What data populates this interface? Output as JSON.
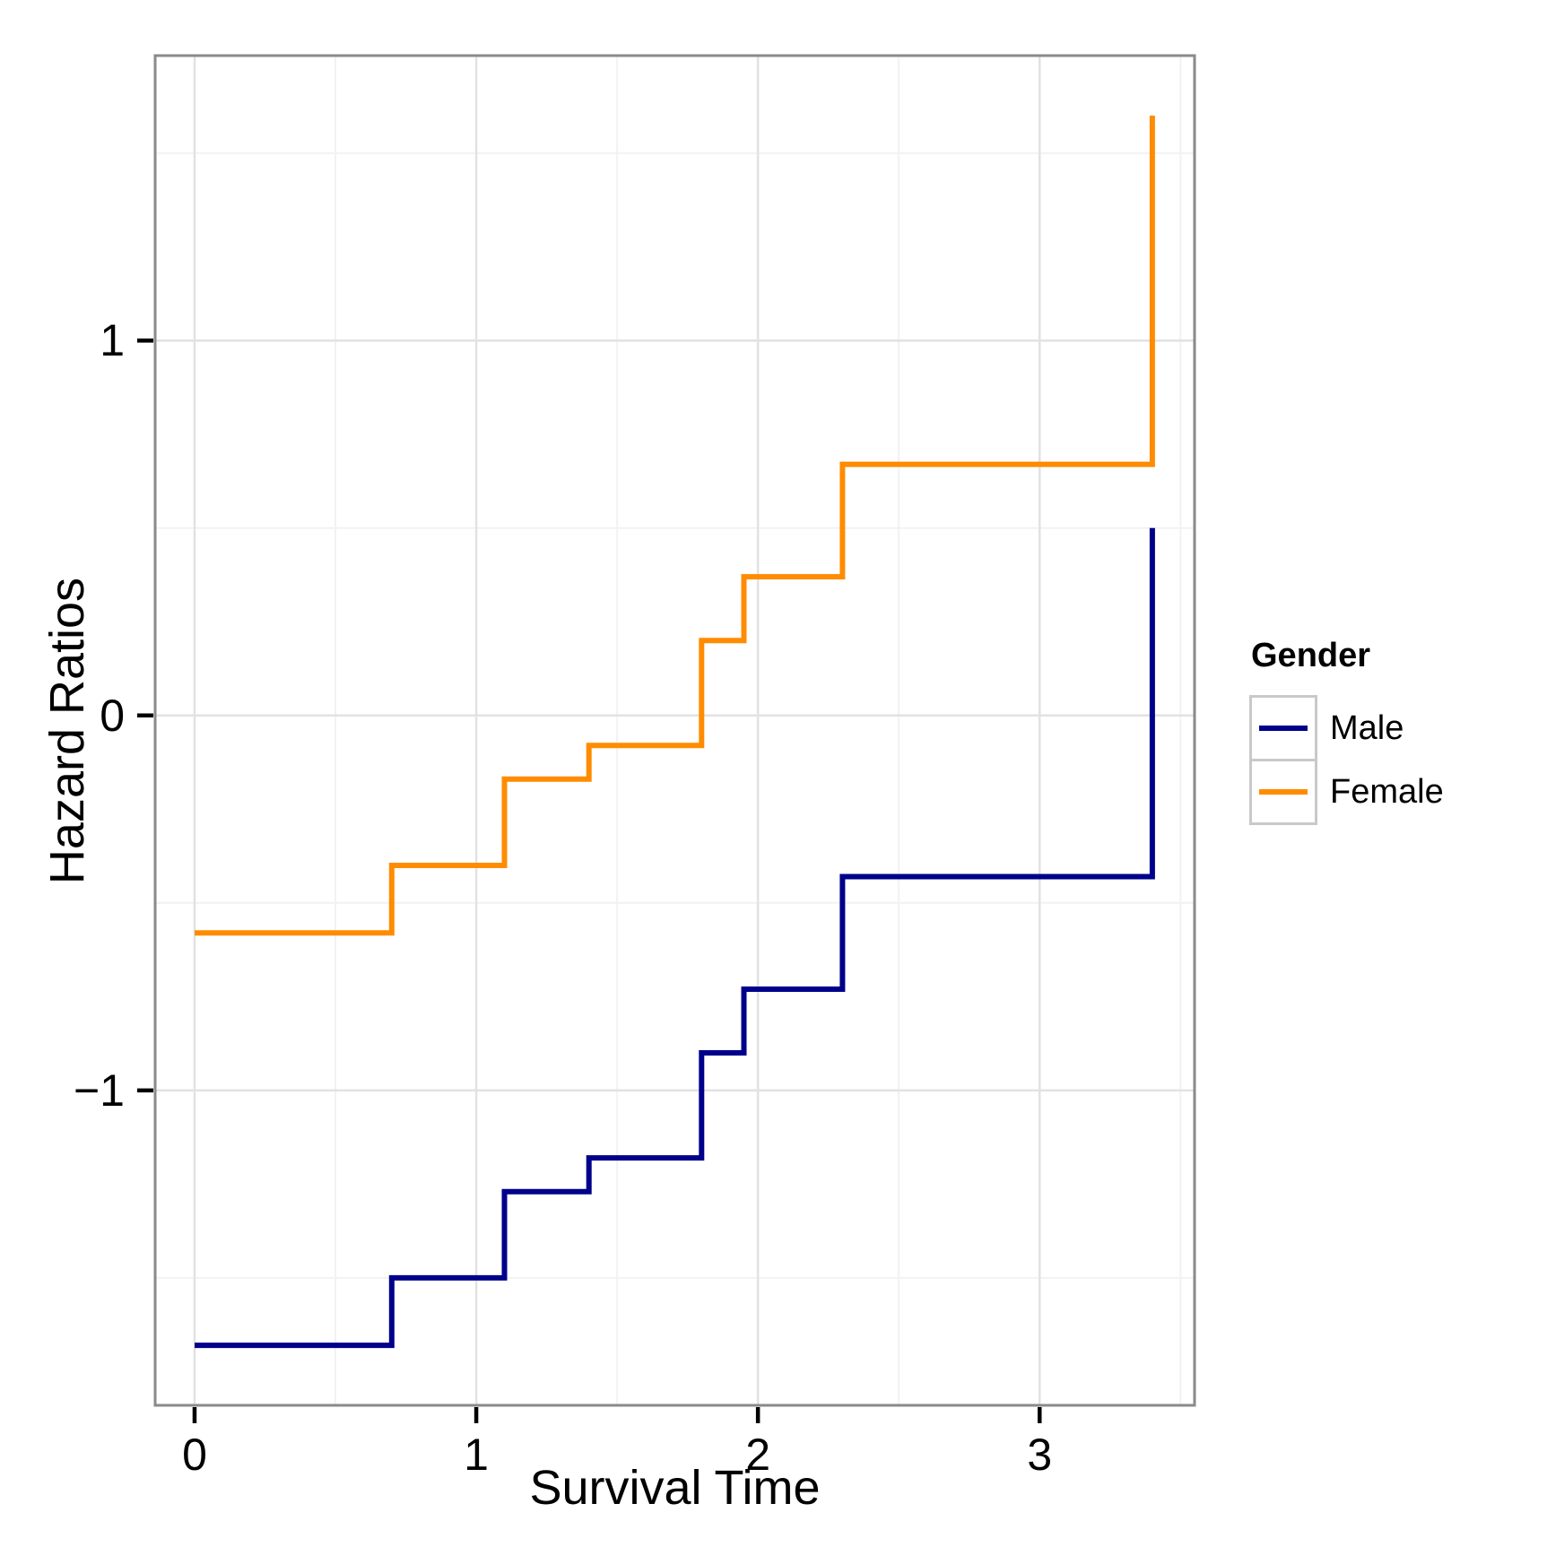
{
  "chart_data": {
    "type": "line",
    "variant": "step",
    "title": "",
    "xlabel": "Survival Time",
    "ylabel": "Hazard Ratios",
    "xlim": [
      -0.14,
      3.55
    ],
    "ylim": [
      -1.84,
      1.76
    ],
    "grid": true,
    "legend_position": "right",
    "x_ticks": {
      "values": [
        0,
        1,
        2,
        3
      ],
      "labels": [
        "0",
        "1",
        "2",
        "3"
      ]
    },
    "y_ticks": {
      "values": [
        1,
        0,
        -1
      ],
      "labels": [
        "1",
        "0",
        "−1"
      ]
    },
    "x_minor_ticks": [
      0.5,
      1.5,
      2.5,
      3.5
    ],
    "y_minor_ticks": [
      1.5,
      0.5,
      -0.5,
      -1.5
    ],
    "series": [
      {
        "name": "Male",
        "color": "#00008B",
        "steps": [
          [
            0,
            -1.68
          ],
          [
            0.7,
            -1.5
          ],
          [
            1.1,
            -1.27
          ],
          [
            1.4,
            -1.18
          ],
          [
            1.8,
            -0.9
          ],
          [
            1.95,
            -0.73
          ],
          [
            2.3,
            -0.43
          ],
          [
            3.4,
            0.5
          ]
        ]
      },
      {
        "name": "Female",
        "color": "#FF8C00",
        "steps": [
          [
            0,
            -0.58
          ],
          [
            0.7,
            -0.4
          ],
          [
            1.1,
            -0.17
          ],
          [
            1.4,
            -0.08
          ],
          [
            1.8,
            0.2
          ],
          [
            1.95,
            0.37
          ],
          [
            2.3,
            0.67
          ],
          [
            3.4,
            1.6
          ]
        ]
      }
    ]
  },
  "axes": {
    "x_title": "Survival Time",
    "y_title": "Hazard Ratios"
  },
  "legend": {
    "title": "Gender",
    "items": [
      {
        "label": "Male",
        "color": "#00008B"
      },
      {
        "label": "Female",
        "color": "#FF8C00"
      }
    ]
  },
  "style_colors": {
    "panel_border": "#8a8a8a",
    "grid_major": "#e2e2e2",
    "grid_minor": "#f2f2f2",
    "tick": "#000000",
    "legend_key_border": "#c9c9c9"
  }
}
